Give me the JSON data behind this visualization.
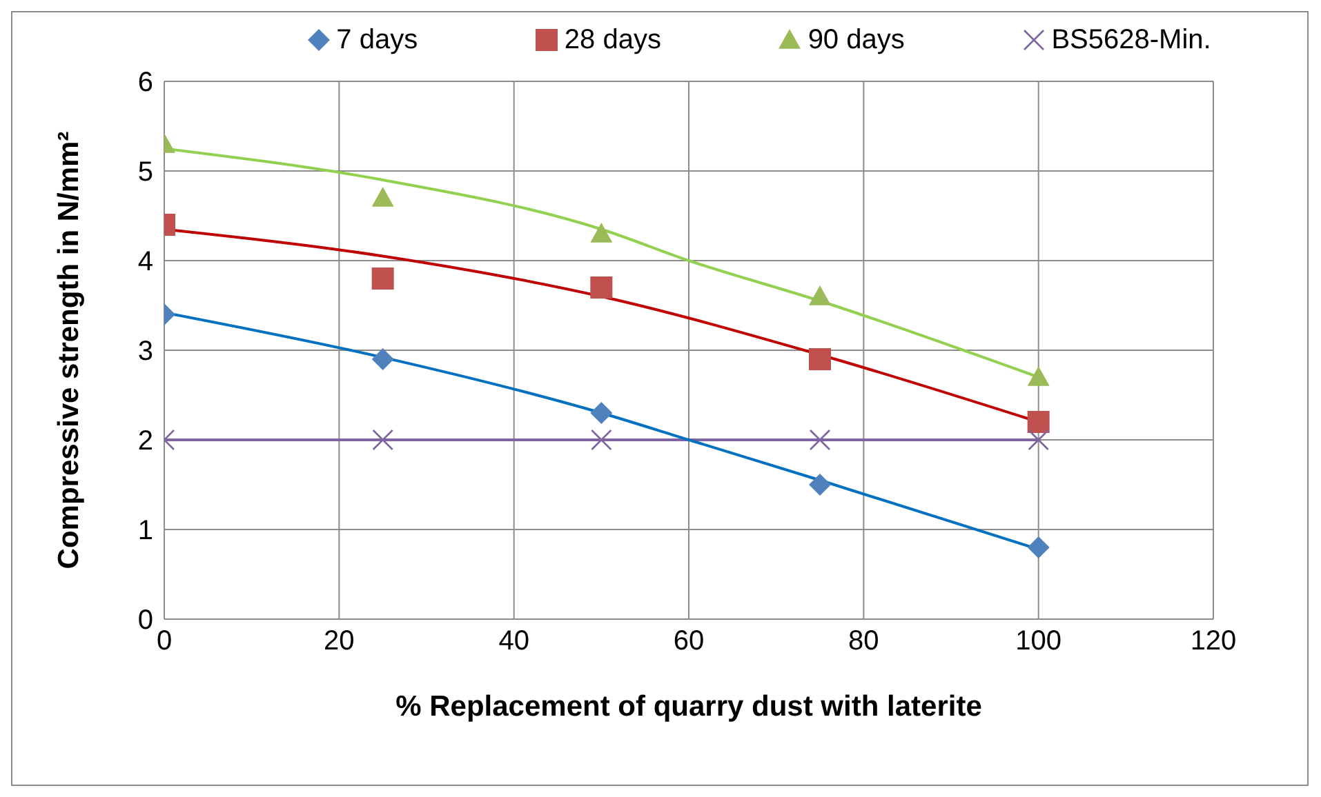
{
  "chart_data": {
    "type": "scatter",
    "xlabel": "% Replacement of quarry dust with laterite",
    "ylabel": "Compressive strength in N/mm²",
    "xlim": [
      0,
      120
    ],
    "xticks": [
      0,
      20,
      40,
      60,
      80,
      100,
      120
    ],
    "ylim": [
      0,
      6
    ],
    "yticks": [
      0,
      1,
      2,
      3,
      4,
      5,
      6
    ],
    "grid": true,
    "legend": "top",
    "x": [
      0,
      25,
      50,
      75,
      100
    ],
    "series": [
      {
        "name": "7 days",
        "marker": "diamond",
        "color": "#4f81bd",
        "values": [
          3.4,
          2.9,
          2.3,
          1.5,
          0.8
        ]
      },
      {
        "name": "28 days",
        "marker": "square",
        "color": "#c0504d",
        "values": [
          4.4,
          3.8,
          3.7,
          2.9,
          2.2
        ]
      },
      {
        "name": "90 days",
        "marker": "triangle",
        "color": "#9bbb59",
        "values": [
          5.3,
          4.7,
          4.3,
          3.6,
          2.7
        ]
      },
      {
        "name": "BS5628-Min.",
        "type": "line",
        "marker": "cross",
        "color": "#8064a2",
        "values": [
          2,
          2,
          2,
          2,
          2
        ]
      },
      {
        "type": "line",
        "marker": "none",
        "color": "#0070c0",
        "x": [
          0,
          25,
          50,
          60,
          75,
          100
        ],
        "values": [
          3.42,
          2.92,
          2.3,
          2.0,
          1.55,
          0.78
        ]
      },
      {
        "type": "line",
        "marker": "none",
        "color": "#c00000",
        "x": [
          0,
          25,
          50,
          75,
          100
        ],
        "values": [
          4.35,
          4.05,
          3.6,
          2.95,
          2.2
        ]
      },
      {
        "type": "line",
        "marker": "none",
        "color": "#92d050",
        "x": [
          0,
          25,
          50,
          60,
          75,
          100
        ],
        "values": [
          5.25,
          4.9,
          4.35,
          4.0,
          3.55,
          2.7
        ]
      }
    ]
  }
}
